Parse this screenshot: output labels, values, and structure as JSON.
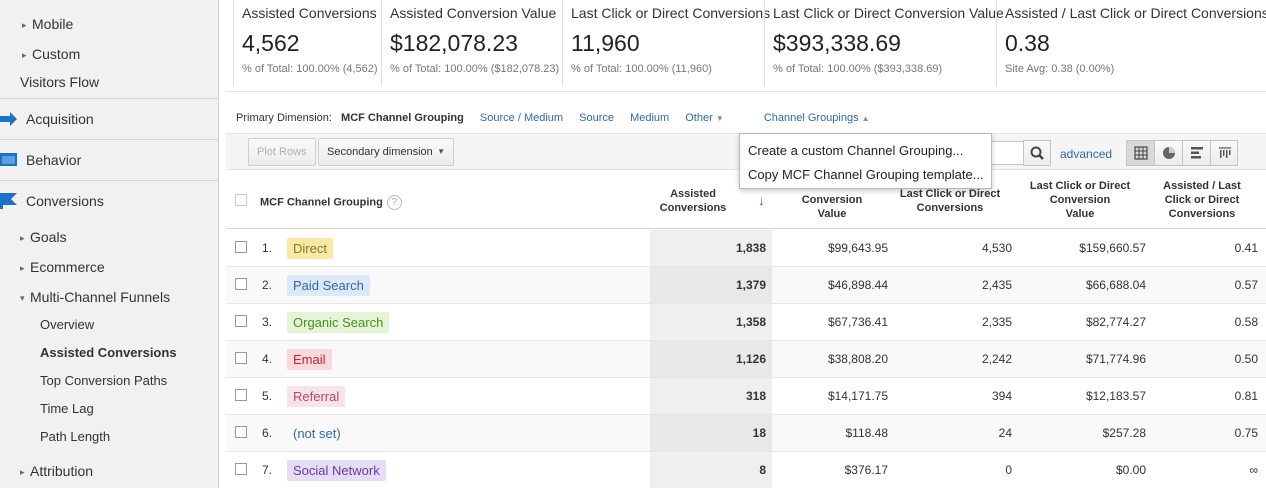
{
  "sidebar": {
    "items": [
      {
        "label": "Mobile"
      },
      {
        "label": "Custom"
      },
      {
        "label": "Visitors Flow"
      },
      {
        "label": "Acquisition"
      },
      {
        "label": "Behavior"
      },
      {
        "label": "Conversions"
      },
      {
        "label": "Goals"
      },
      {
        "label": "Ecommerce"
      },
      {
        "label": "Multi-Channel Funnels"
      },
      {
        "label": "Overview"
      },
      {
        "label": "Assisted Conversions"
      },
      {
        "label": "Top Conversion Paths"
      },
      {
        "label": "Time Lag"
      },
      {
        "label": "Path Length"
      },
      {
        "label": "Attribution"
      }
    ]
  },
  "metrics": [
    {
      "title": "Assisted Conversions",
      "value": "4,562",
      "sub": "% of Total: 100.00% (4,562)"
    },
    {
      "title": "Assisted Conversion Value",
      "value": "$182,078.23",
      "sub": "% of Total: 100.00% ($182,078.23)"
    },
    {
      "title": "Last Click or Direct Conversions",
      "value": "11,960",
      "sub": "% of Total: 100.00% (11,960)"
    },
    {
      "title": "Last Click or Direct Conversion Value",
      "value": "$393,338.69",
      "sub": "% of Total: 100.00% ($393,338.69)"
    },
    {
      "title": "Assisted / Last Click or Direct Conversions",
      "value": "0.38",
      "sub": "Site Avg: 0.38 (0.00%)"
    }
  ],
  "primary_dimension": {
    "label": "Primary Dimension:",
    "current": "MCF Channel Grouping",
    "options": [
      "Source / Medium",
      "Source",
      "Medium",
      "Other"
    ],
    "channel_groupings": "Channel Groupings"
  },
  "toolbar": {
    "plot_rows": "Plot Rows",
    "secondary_dimension": "Secondary dimension",
    "advanced": "advanced"
  },
  "channel_menu": {
    "items": [
      "Create a custom Channel Grouping...",
      "Copy MCF Channel Grouping template..."
    ]
  },
  "table": {
    "headers": {
      "dimension": "MCF Channel Grouping",
      "assisted_conversions": [
        "Assisted",
        "Conversions"
      ],
      "assisted_value": [
        "Conversion",
        "Value"
      ],
      "last_click_conversions": [
        "Last Click or Direct",
        "Conversions"
      ],
      "last_click_value": [
        "Last Click or Direct",
        "Conversion",
        "Value"
      ],
      "ratio": [
        "Assisted / Last",
        "Click or Direct",
        "Conversions"
      ]
    },
    "rows": [
      {
        "idx": "1.",
        "channel": "Direct",
        "bg": "#f7e9a6",
        "fg": "#8a7a20",
        "ac": "1,838",
        "acv": "$99,643.95",
        "lc": "4,530",
        "lcv": "$159,660.57",
        "ratio": "0.41"
      },
      {
        "idx": "2.",
        "channel": "Paid Search",
        "bg": "#dce9f8",
        "fg": "#3366aa",
        "ac": "1,379",
        "acv": "$46,898.44",
        "lc": "2,435",
        "lcv": "$66,688.04",
        "ratio": "0.57"
      },
      {
        "idx": "3.",
        "channel": "Organic Search",
        "bg": "#e5f3d6",
        "fg": "#4b8f22",
        "ac": "1,358",
        "acv": "$67,736.41",
        "lc": "2,335",
        "lcv": "$82,774.27",
        "ratio": "0.58"
      },
      {
        "idx": "4.",
        "channel": "Email",
        "bg": "#f9d9dc",
        "fg": "#c2232f",
        "ac": "1,126",
        "acv": "$38,808.20",
        "lc": "2,242",
        "lcv": "$71,774.96",
        "ratio": "0.50"
      },
      {
        "idx": "5.",
        "channel": "Referral",
        "bg": "#f8e3ea",
        "fg": "#b04a6a",
        "ac": "318",
        "acv": "$14,171.75",
        "lc": "394",
        "lcv": "$12,183.57",
        "ratio": "0.81"
      },
      {
        "idx": "6.",
        "channel": "(not set)",
        "bg": "transparent",
        "fg": "#3366aa",
        "ac": "18",
        "acv": "$118.48",
        "lc": "24",
        "lcv": "$257.28",
        "ratio": "0.75"
      },
      {
        "idx": "7.",
        "channel": "Social Network",
        "bg": "#e6dcf5",
        "fg": "#6a3aa5",
        "ac": "8",
        "acv": "$376.17",
        "lc": "0",
        "lcv": "$0.00",
        "ratio": "∞"
      }
    ]
  }
}
